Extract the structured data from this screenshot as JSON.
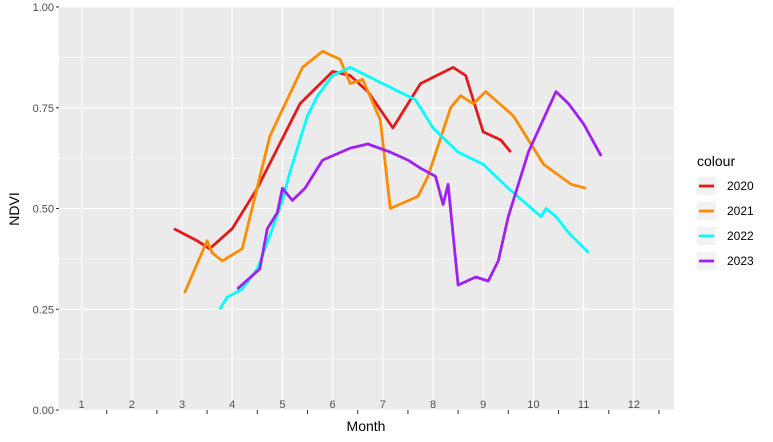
{
  "chart_data": {
    "type": "line",
    "title": "",
    "xlabel": "Month",
    "ylabel": "NDVI",
    "xlim": [
      0.55,
      12.8
    ],
    "ylim": [
      0.0,
      1.0
    ],
    "x_tick_labels": [
      "1",
      "2",
      "3",
      "4",
      "5",
      "6",
      "7",
      "8",
      "9",
      "10",
      "11",
      "12"
    ],
    "y_ticks": [
      0.0,
      0.25,
      0.5,
      0.75,
      1.0
    ],
    "y_tick_labels": [
      "0.00",
      "0.25",
      "0.50",
      "0.75",
      "1.00"
    ],
    "grid": true,
    "legend": {
      "title": "colour",
      "position": "right"
    },
    "series": [
      {
        "name": "2020",
        "color": "#e31a1c",
        "points": [
          [
            2.84,
            0.45
          ],
          [
            3.3,
            0.42
          ],
          [
            3.55,
            0.4
          ],
          [
            4.0,
            0.45
          ],
          [
            4.5,
            0.55
          ],
          [
            5.35,
            0.76
          ],
          [
            6.0,
            0.84
          ],
          [
            6.35,
            0.83
          ],
          [
            6.7,
            0.79
          ],
          [
            7.2,
            0.7
          ],
          [
            7.75,
            0.81
          ],
          [
            8.4,
            0.85
          ],
          [
            8.65,
            0.83
          ],
          [
            9.0,
            0.69
          ],
          [
            9.35,
            0.67
          ],
          [
            9.55,
            0.64
          ]
        ]
      },
      {
        "name": "2021",
        "color": "#ff8c00",
        "points": [
          [
            3.05,
            0.29
          ],
          [
            3.5,
            0.42
          ],
          [
            3.6,
            0.39
          ],
          [
            3.8,
            0.37
          ],
          [
            4.2,
            0.4
          ],
          [
            4.75,
            0.68
          ],
          [
            5.4,
            0.85
          ],
          [
            5.8,
            0.89
          ],
          [
            6.15,
            0.87
          ],
          [
            6.35,
            0.81
          ],
          [
            6.6,
            0.82
          ],
          [
            6.95,
            0.72
          ],
          [
            7.15,
            0.5
          ],
          [
            7.7,
            0.53
          ],
          [
            7.9,
            0.58
          ],
          [
            8.35,
            0.75
          ],
          [
            8.55,
            0.78
          ],
          [
            8.8,
            0.76
          ],
          [
            9.05,
            0.79
          ],
          [
            9.6,
            0.73
          ],
          [
            9.75,
            0.7
          ],
          [
            10.2,
            0.61
          ],
          [
            10.75,
            0.56
          ],
          [
            11.05,
            0.55
          ]
        ]
      },
      {
        "name": "2022",
        "color": "#00ffff",
        "points": [
          [
            3.75,
            0.25
          ],
          [
            3.9,
            0.28
          ],
          [
            4.2,
            0.3
          ],
          [
            4.5,
            0.35
          ],
          [
            4.8,
            0.45
          ],
          [
            5.0,
            0.52
          ],
          [
            5.15,
            0.59
          ],
          [
            5.5,
            0.73
          ],
          [
            5.7,
            0.78
          ],
          [
            6.0,
            0.83
          ],
          [
            6.35,
            0.85
          ],
          [
            7.0,
            0.81
          ],
          [
            7.65,
            0.77
          ],
          [
            8.0,
            0.7
          ],
          [
            8.5,
            0.64
          ],
          [
            9.0,
            0.61
          ],
          [
            9.5,
            0.55
          ],
          [
            10.15,
            0.48
          ],
          [
            10.25,
            0.5
          ],
          [
            10.45,
            0.48
          ],
          [
            10.7,
            0.44
          ],
          [
            11.1,
            0.39
          ]
        ]
      },
      {
        "name": "2023",
        "color": "#a020f0",
        "points": [
          [
            4.1,
            0.3
          ],
          [
            4.55,
            0.35
          ],
          [
            4.7,
            0.45
          ],
          [
            4.9,
            0.49
          ],
          [
            5.0,
            0.55
          ],
          [
            5.2,
            0.52
          ],
          [
            5.45,
            0.55
          ],
          [
            5.8,
            0.62
          ],
          [
            6.35,
            0.65
          ],
          [
            6.7,
            0.66
          ],
          [
            7.15,
            0.64
          ],
          [
            7.5,
            0.62
          ],
          [
            7.75,
            0.6
          ],
          [
            8.05,
            0.58
          ],
          [
            8.2,
            0.51
          ],
          [
            8.3,
            0.56
          ],
          [
            8.5,
            0.31
          ],
          [
            8.85,
            0.33
          ],
          [
            9.1,
            0.32
          ],
          [
            9.3,
            0.37
          ],
          [
            9.5,
            0.48
          ],
          [
            9.9,
            0.64
          ],
          [
            10.45,
            0.79
          ],
          [
            10.7,
            0.76
          ],
          [
            11.0,
            0.71
          ],
          [
            11.35,
            0.63
          ]
        ]
      }
    ]
  }
}
